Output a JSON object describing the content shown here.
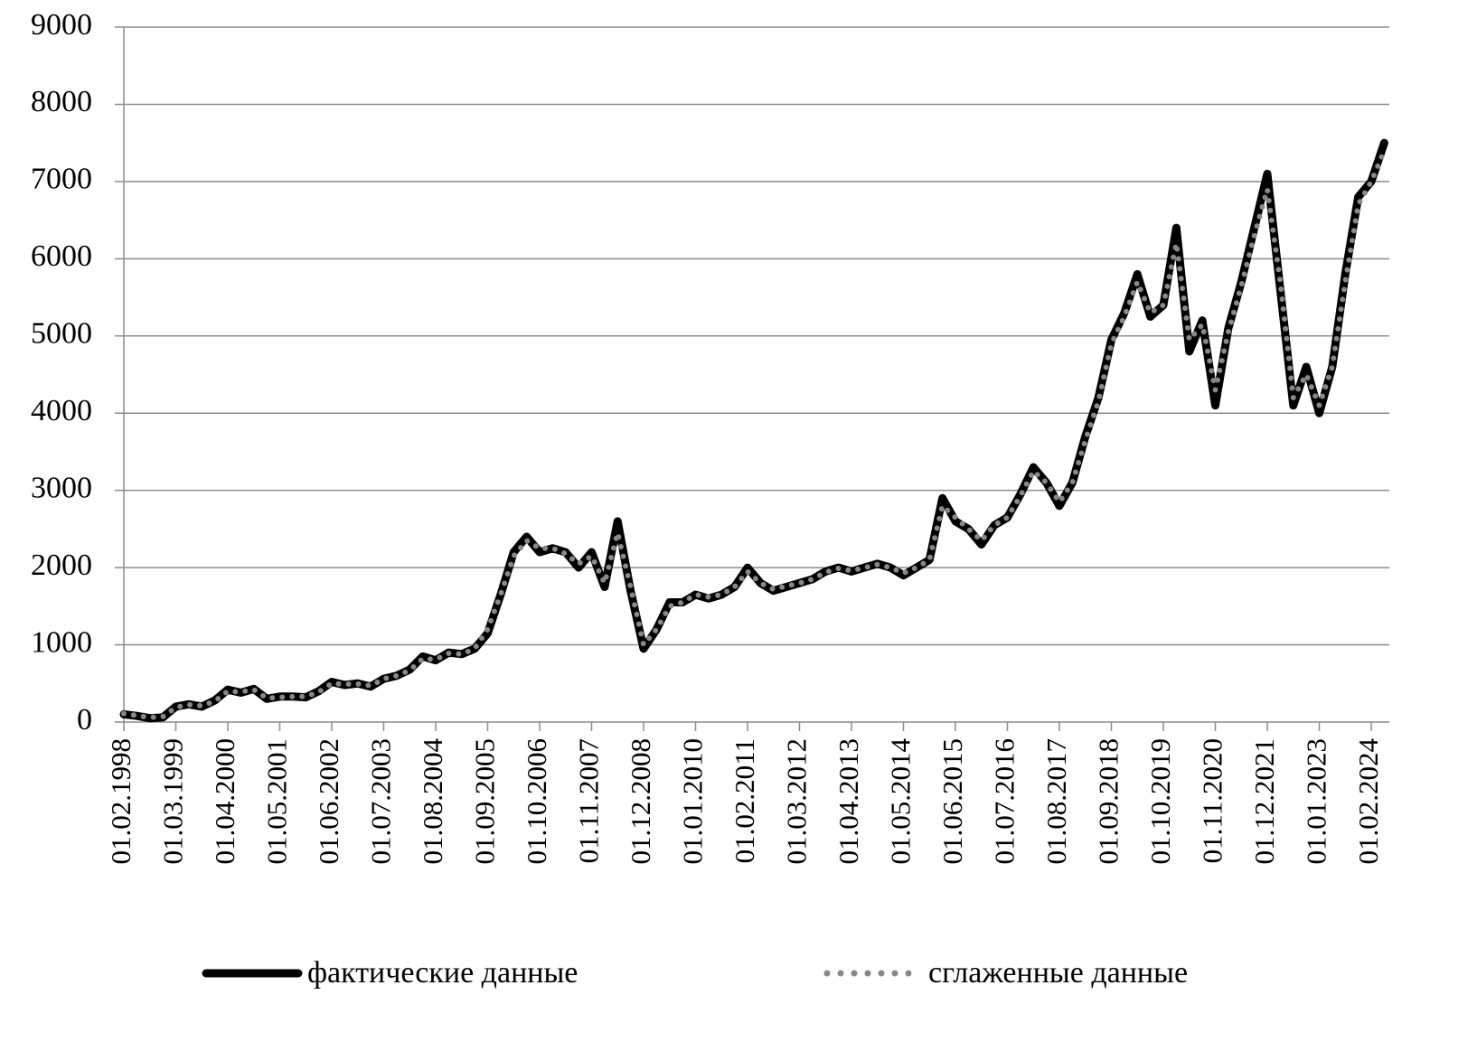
{
  "chart_data": {
    "type": "line",
    "categories": [
      "01.02.1998",
      null,
      null,
      null,
      "01.03.1999",
      null,
      null,
      null,
      "01.04.2000",
      null,
      null,
      null,
      "01.05.2001",
      null,
      null,
      null,
      "01.06.2002",
      null,
      null,
      null,
      "01.07.2003",
      null,
      null,
      null,
      "01.08.2004",
      null,
      null,
      null,
      "01.09.2005",
      null,
      null,
      null,
      "01.10.2006",
      null,
      null,
      null,
      "01.11.2007",
      null,
      null,
      null,
      "01.12.2008",
      null,
      null,
      null,
      "01.01.2010",
      null,
      null,
      null,
      "01.02.2011",
      null,
      null,
      null,
      "01.03.2012",
      null,
      null,
      null,
      "01.04.2013",
      null,
      null,
      null,
      "01.05.2014",
      null,
      null,
      null,
      "01.06.2015",
      null,
      null,
      null,
      "01.07.2016",
      null,
      null,
      null,
      "01.08.2017",
      null,
      null,
      null,
      "01.09.2018",
      null,
      null,
      null,
      "01.10.2019",
      null,
      null,
      null,
      "01.11.2020",
      null,
      null,
      null,
      "01.12.2021",
      null,
      null,
      null,
      "01.01.2023",
      null,
      null,
      null,
      "01.02.2024",
      null
    ],
    "series": [
      {
        "name": "фактические данные",
        "color": "#000000",
        "style": "solid",
        "values": [
          100,
          80,
          50,
          60,
          200,
          230,
          200,
          280,
          420,
          380,
          430,
          300,
          330,
          330,
          320,
          400,
          520,
          480,
          500,
          460,
          560,
          600,
          680,
          850,
          800,
          900,
          880,
          950,
          1150,
          1650,
          2200,
          2400,
          2200,
          2250,
          2200,
          2000,
          2200,
          1750,
          2600,
          1700,
          950,
          1200,
          1550,
          1550,
          1650,
          1600,
          1650,
          1750,
          2000,
          1800,
          1700,
          1750,
          1800,
          1850,
          1950,
          2000,
          1950,
          2000,
          2050,
          2000,
          1900,
          2000,
          2100,
          2900,
          2600,
          2500,
          2300,
          2550,
          2650,
          2950,
          3300,
          3100,
          2800,
          3100,
          3700,
          4200,
          4950,
          5300,
          5800,
          5250,
          5400,
          6400,
          4800,
          5200,
          4100,
          5100,
          5700,
          6400,
          7100,
          5600,
          4100,
          4600,
          4000,
          4600,
          5800,
          6800,
          7000,
          7500
        ]
      },
      {
        "name": "сглаженные данные",
        "color": "#888888",
        "style": "dotted",
        "values": [
          110,
          85,
          60,
          70,
          190,
          225,
          210,
          270,
          400,
          390,
          420,
          310,
          320,
          330,
          330,
          390,
          500,
          490,
          495,
          470,
          560,
          600,
          670,
          820,
          810,
          890,
          880,
          950,
          1200,
          1650,
          2150,
          2350,
          2250,
          2250,
          2180,
          2050,
          2150,
          1800,
          2450,
          1750,
          1000,
          1200,
          1500,
          1550,
          1650,
          1620,
          1650,
          1750,
          1950,
          1800,
          1720,
          1760,
          1800,
          1850,
          1940,
          1990,
          1960,
          2000,
          2040,
          2000,
          1930,
          2000,
          2100,
          2800,
          2650,
          2500,
          2350,
          2550,
          2650,
          2930,
          3250,
          3100,
          2850,
          3100,
          3650,
          4150,
          4900,
          5250,
          5700,
          5300,
          5400,
          6200,
          4950,
          5150,
          4300,
          5050,
          5650,
          6300,
          6900,
          5700,
          4200,
          4500,
          4100,
          4600,
          5700,
          6700,
          7000,
          7400
        ]
      }
    ],
    "ylim": [
      0,
      9000
    ],
    "yticks": [
      0,
      1000,
      2000,
      3000,
      4000,
      5000,
      6000,
      7000,
      8000,
      9000
    ],
    "grid": true
  }
}
